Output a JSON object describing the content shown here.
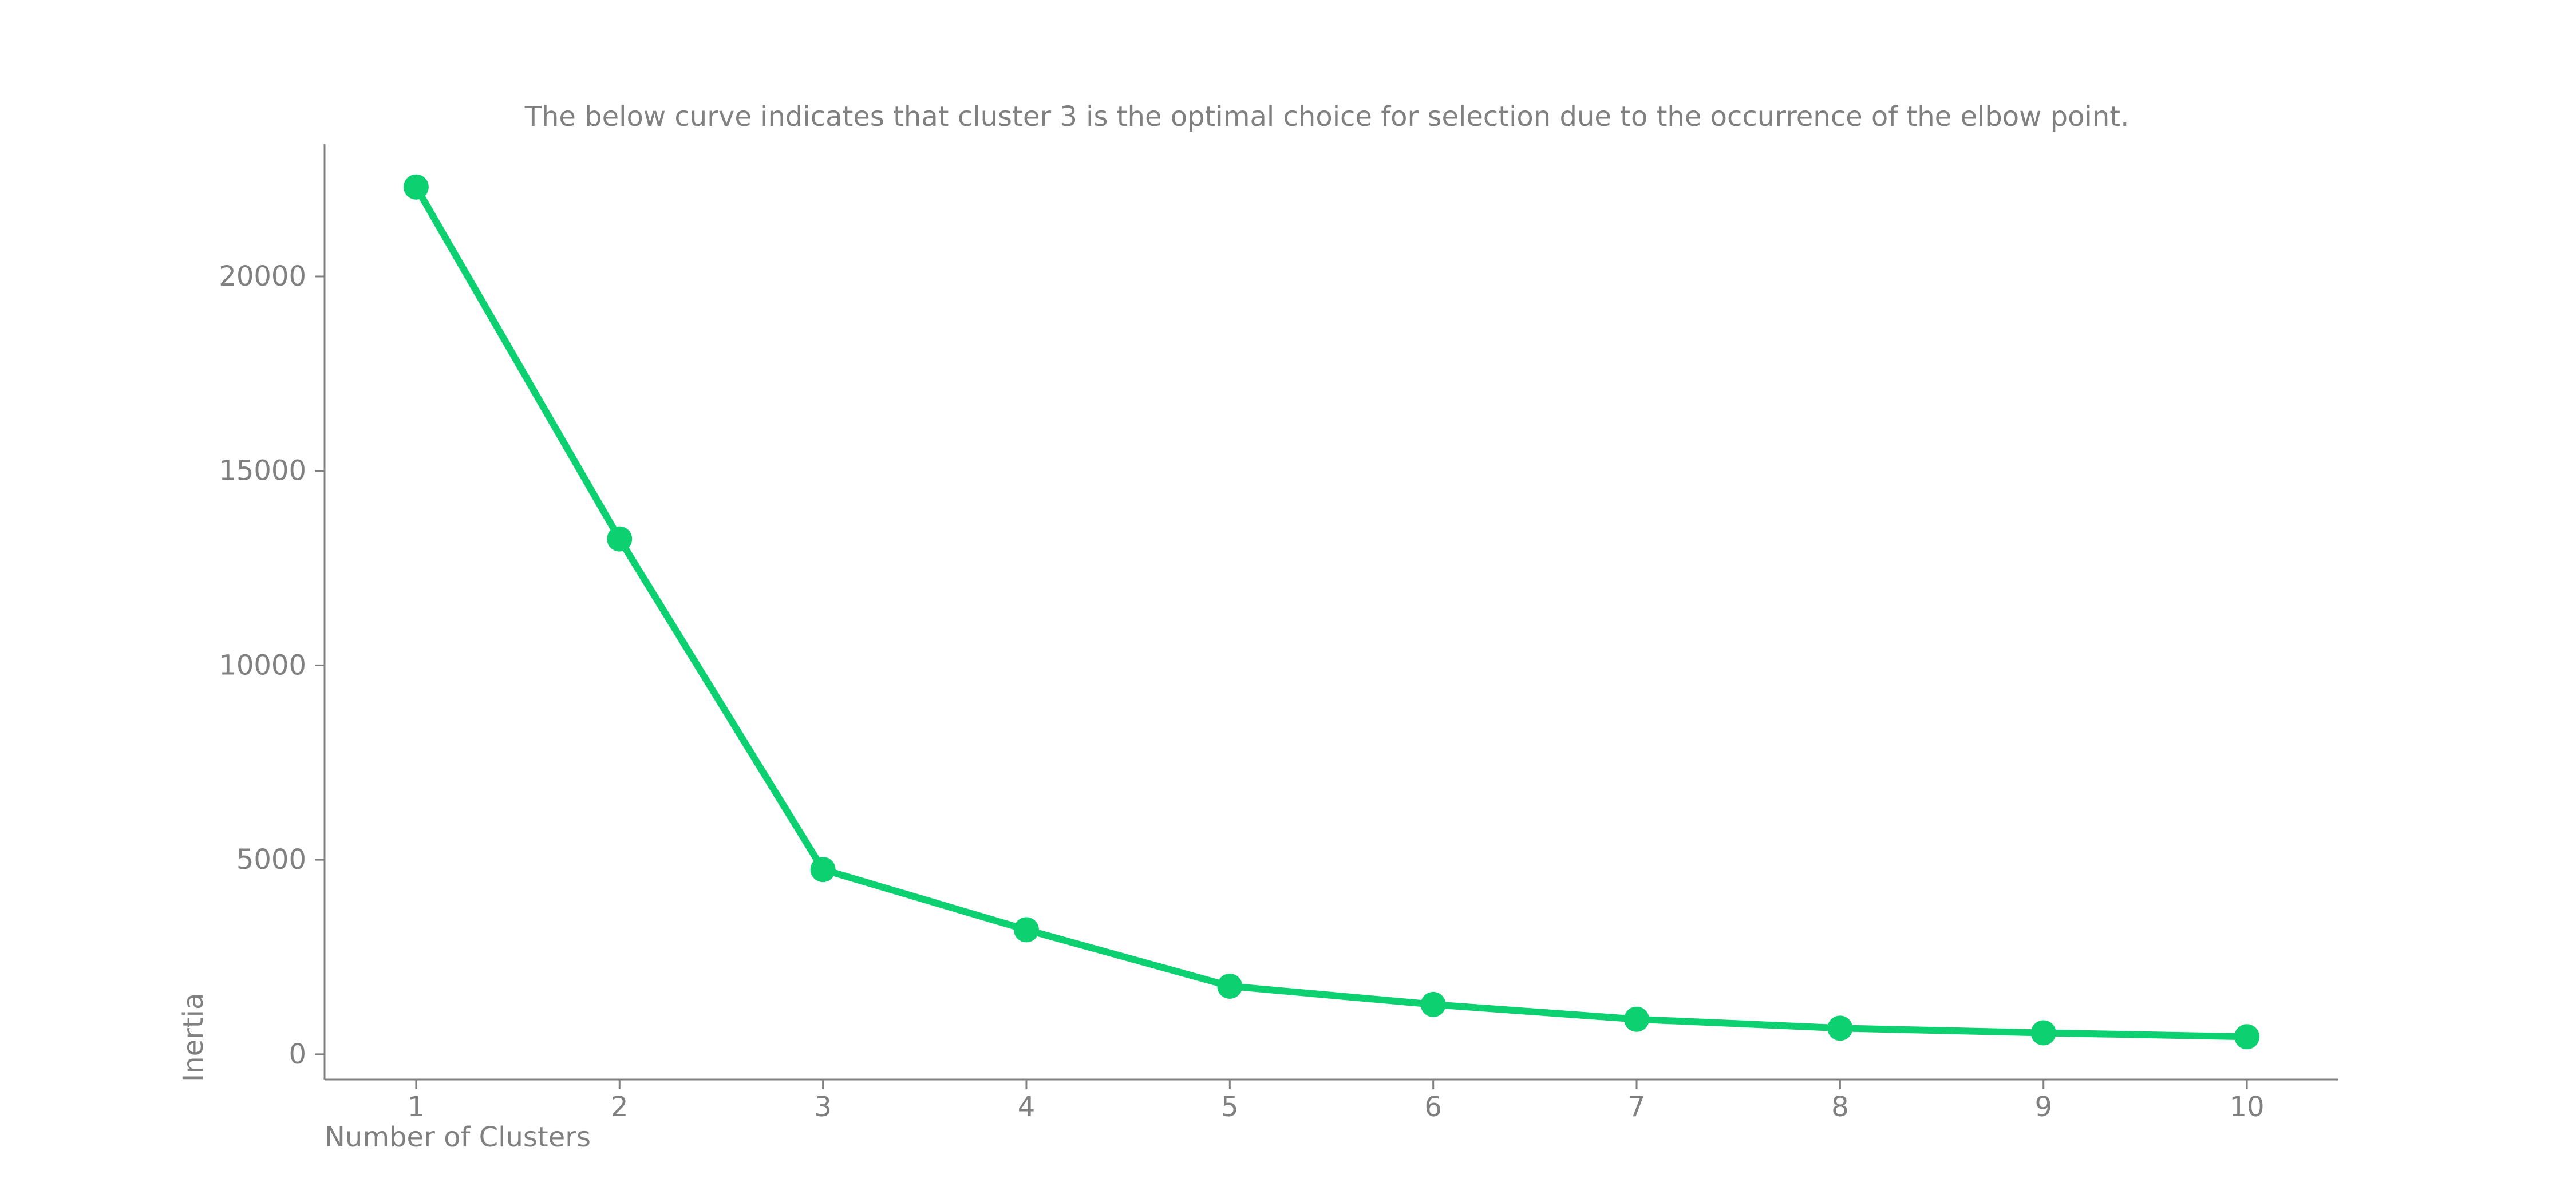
{
  "chart_data": {
    "type": "line",
    "title": "The below curve indicates that cluster 3 is the optimal choice for selection due to the occurrence of the elbow point.",
    "xlabel": "Number of Clusters",
    "ylabel": "Inertia",
    "x": [
      1,
      2,
      3,
      4,
      5,
      6,
      7,
      8,
      9,
      10
    ],
    "y": [
      22300,
      13250,
      4750,
      3200,
      1750,
      1280,
      900,
      670,
      550,
      450
    ],
    "xticks": [
      "1",
      "2",
      "3",
      "4",
      "5",
      "6",
      "7",
      "8",
      "9",
      "10"
    ],
    "yticks": [
      0,
      5000,
      10000,
      15000,
      20000
    ],
    "ytick_labels": [
      "0",
      "5000",
      "10000",
      "15000",
      "20000"
    ],
    "xlim": [
      0.55,
      10.45
    ],
    "ylim": [
      -650,
      23400
    ],
    "grid": false,
    "legend": "none",
    "series": [
      {
        "values": [
          22300,
          13250,
          4750,
          3200,
          1750,
          1280,
          900,
          670,
          550,
          450
        ],
        "marker": "circle"
      }
    ],
    "colors": {
      "line": "#0dd070",
      "text": "#808080",
      "axis": "#808080",
      "background": "#ffffff"
    }
  }
}
